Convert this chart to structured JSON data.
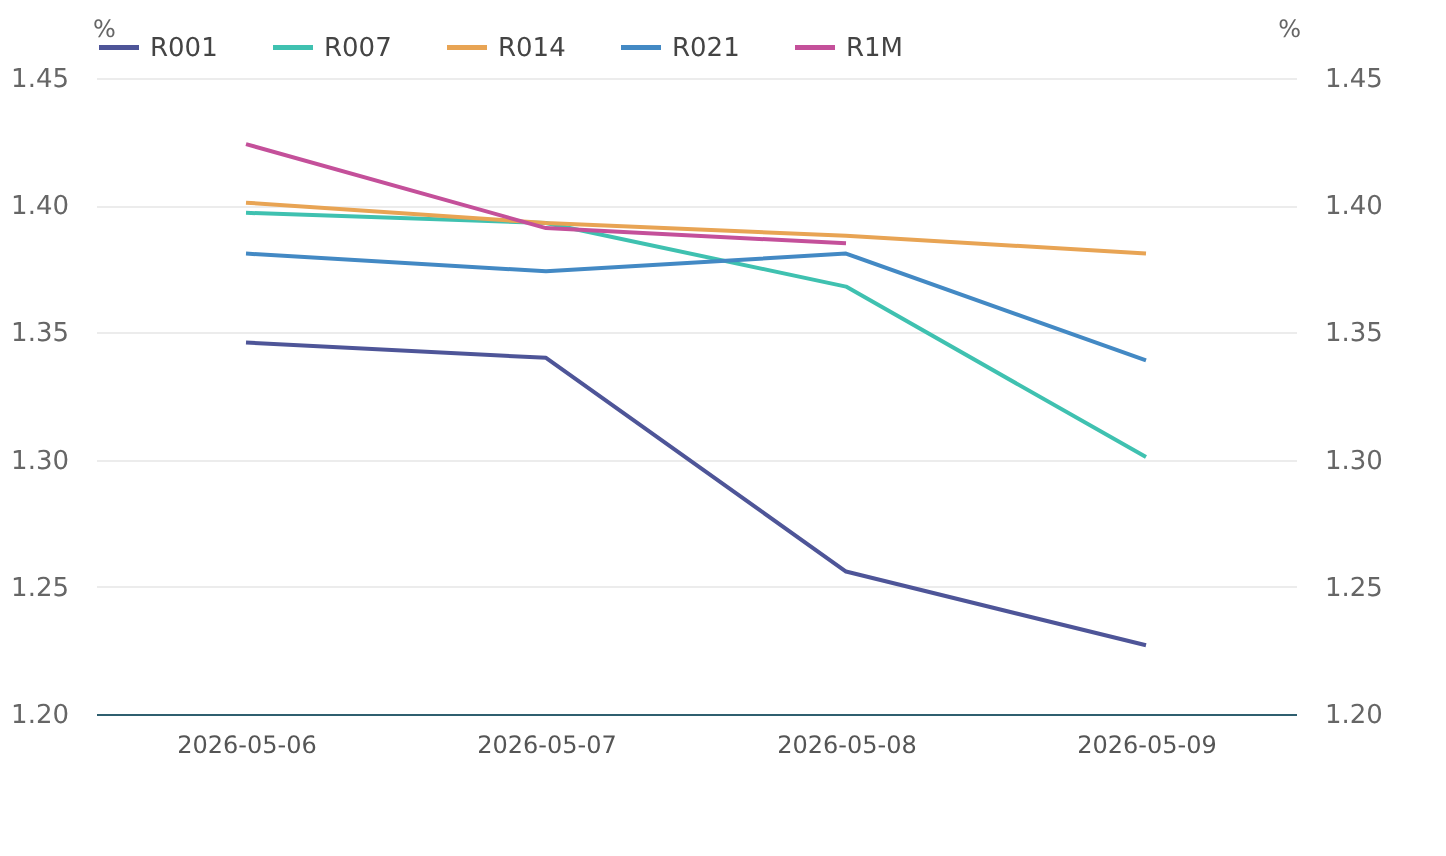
{
  "chart_data": {
    "type": "line",
    "categories": [
      "2026-05-06",
      "2026-05-07",
      "2026-05-08",
      "2026-05-09"
    ],
    "ylabel": "%",
    "y2label": "%",
    "ylim": [
      1.2,
      1.45
    ],
    "yticks": [
      {
        "value": 1.2,
        "label": "1.20"
      },
      {
        "value": 1.25,
        "label": "1.25"
      },
      {
        "value": 1.3,
        "label": "1.30"
      },
      {
        "value": 1.35,
        "label": "1.35"
      },
      {
        "value": 1.4,
        "label": "1.40"
      },
      {
        "value": 1.45,
        "label": "1.45"
      }
    ],
    "y2lim": [
      1.2,
      1.45
    ],
    "y2ticks": [
      {
        "value": 1.2,
        "label": "1.20"
      },
      {
        "value": 1.25,
        "label": "1.25"
      },
      {
        "value": 1.3,
        "label": "1.30"
      },
      {
        "value": 1.35,
        "label": "1.35"
      },
      {
        "value": 1.4,
        "label": "1.40"
      },
      {
        "value": 1.45,
        "label": "1.45"
      }
    ],
    "grid": "y",
    "legend": "top left",
    "marker": "none",
    "line_style": "solid",
    "series": [
      {
        "name": "R001",
        "color": "#4e5598",
        "values": [
          1.346,
          1.34,
          1.256,
          1.227
        ]
      },
      {
        "name": "R007",
        "color": "#3fc1b0",
        "values": [
          1.397,
          1.393,
          1.368,
          1.301
        ]
      },
      {
        "name": "R014",
        "color": "#e8a454",
        "values": [
          1.401,
          1.393,
          1.388,
          1.381
        ]
      },
      {
        "name": "R021",
        "color": "#4389c4",
        "values": [
          1.381,
          1.374,
          1.381,
          1.339
        ]
      },
      {
        "name": "R1M",
        "color": "#c4509a",
        "values": [
          1.424,
          1.391,
          1.385,
          null
        ]
      }
    ]
  }
}
